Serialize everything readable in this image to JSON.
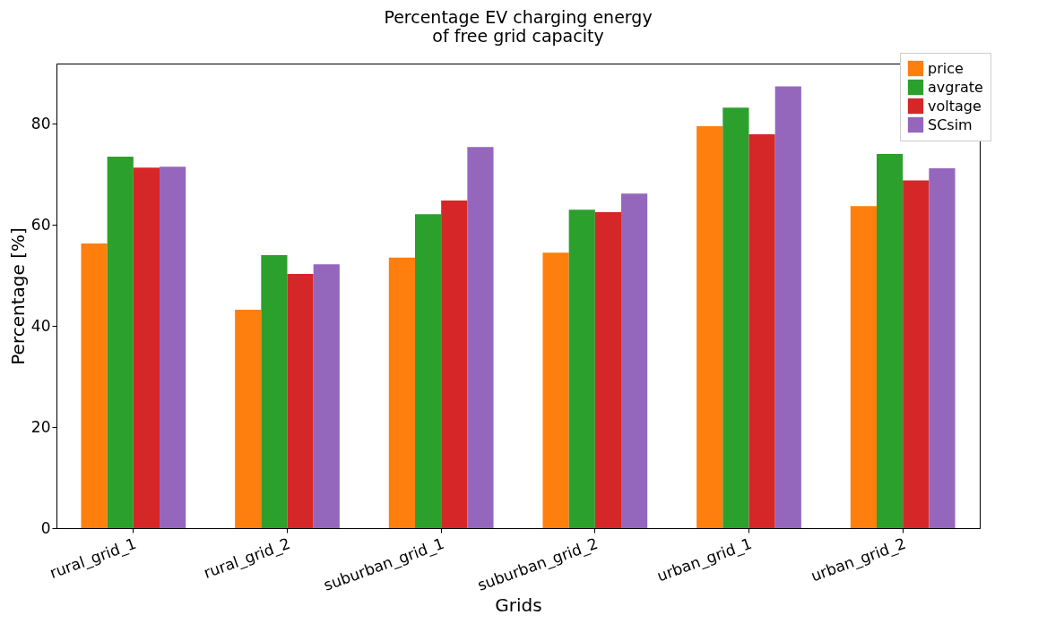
{
  "chart_data": {
    "type": "bar",
    "title": "Percentage EV charging energy\nof free grid capacity",
    "xlabel": "Grids",
    "ylabel": "Percentage [%]",
    "categories": [
      "rural_grid_1",
      "rural_grid_2",
      "suburban_grid_1",
      "suburban_grid_2",
      "urban_grid_1",
      "urban_grid_2"
    ],
    "series": [
      {
        "name": "price",
        "color": "#ff7f0e",
        "values": [
          56.3,
          43.2,
          53.5,
          54.5,
          79.5,
          63.7
        ]
      },
      {
        "name": "avgrate",
        "color": "#2ca02c",
        "values": [
          73.5,
          54.0,
          62.1,
          63.0,
          83.2,
          74.0
        ]
      },
      {
        "name": "voltage",
        "color": "#d62728",
        "values": [
          71.3,
          50.3,
          64.8,
          62.5,
          77.9,
          68.8
        ]
      },
      {
        "name": "SCsim",
        "color": "#9467bd",
        "values": [
          71.5,
          52.2,
          75.4,
          66.2,
          87.4,
          71.2
        ]
      }
    ],
    "ylim": [
      0,
      91.9
    ],
    "yticks": [
      0,
      20,
      40,
      60,
      80
    ],
    "grid": false,
    "legend": "top right"
  }
}
